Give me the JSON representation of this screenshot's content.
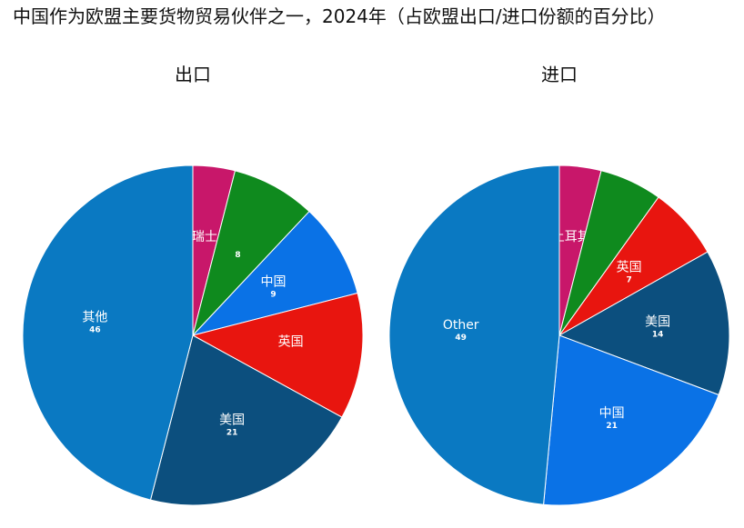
{
  "title": "中国作为欧盟主要货物贸易伙伴之一，2024年（占欧盟出口/进口份额的百分比）",
  "chart_data": [
    {
      "type": "pie",
      "title": "出口",
      "slices": [
        {
          "label": "瑞士",
          "value": 4,
          "value_text": "",
          "color": "#c8176a"
        },
        {
          "label": "",
          "value": 8,
          "value_text": "8",
          "color": "#0f8a1e"
        },
        {
          "label": "中国",
          "value": 9,
          "value_text": "9",
          "color": "#0a72e6"
        },
        {
          "label": "英国",
          "value": 12,
          "value_text": "",
          "color": "#e8150f"
        },
        {
          "label": "美国",
          "value": 21,
          "value_text": "21",
          "color": "#0c4f7e"
        },
        {
          "label": "其他",
          "value": 46,
          "value_text": "46",
          "color": "#0a79c2"
        }
      ]
    },
    {
      "type": "pie",
      "title": "进口",
      "slices": [
        {
          "label": "土耳其",
          "value": 4,
          "value_text": "",
          "color": "#c8176a"
        },
        {
          "label": "",
          "value": 6,
          "value_text": "",
          "color": "#0f8a1e"
        },
        {
          "label": "英国",
          "value": 7,
          "value_text": "7",
          "color": "#e8150f"
        },
        {
          "label": "美国",
          "value": 14,
          "value_text": "14",
          "color": "#0c4f7e"
        },
        {
          "label": "中国",
          "value": 21,
          "value_text": "21",
          "color": "#0a72e6"
        },
        {
          "label": "Other",
          "value": 49,
          "value_text": "49",
          "color": "#0a79c2"
        }
      ]
    }
  ]
}
